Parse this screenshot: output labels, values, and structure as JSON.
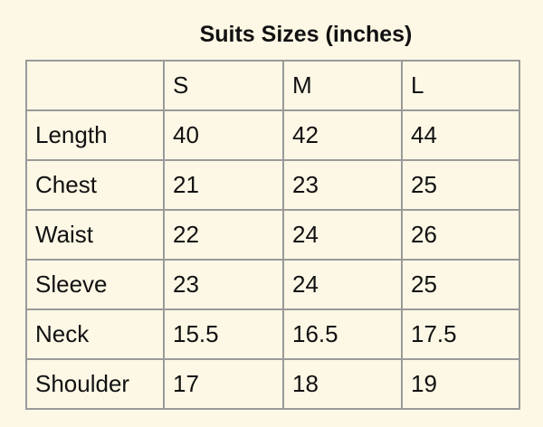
{
  "header": {
    "title": "Suits Sizes (inches)"
  },
  "table": {
    "columns": [
      "S",
      "M",
      "L"
    ],
    "rows": [
      {
        "label": "Length",
        "values": [
          40,
          42,
          44
        ]
      },
      {
        "label": "Chest",
        "values": [
          21,
          23,
          25
        ]
      },
      {
        "label": "Waist",
        "values": [
          22,
          24,
          26
        ]
      },
      {
        "label": "Sleeve",
        "values": [
          23,
          24,
          25
        ]
      },
      {
        "label": "Neck",
        "values": [
          15.5,
          16.5,
          17.5
        ]
      },
      {
        "label": "Shoulder",
        "values": [
          17,
          18,
          19
        ]
      }
    ]
  }
}
